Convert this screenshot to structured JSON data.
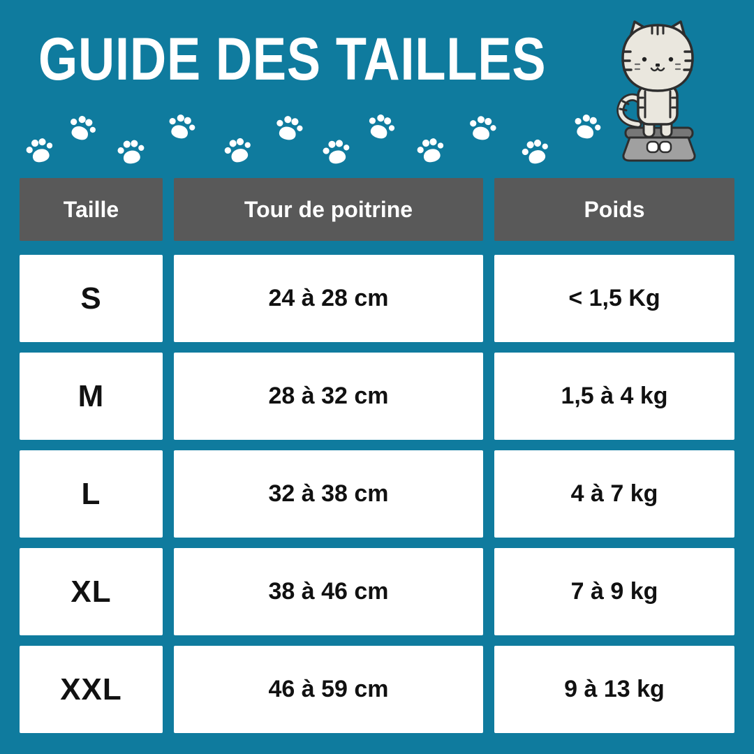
{
  "page": {
    "title": "GUIDE DES TAILLES"
  },
  "decor": {
    "paw_icon": "paw-print-icon",
    "paw_count": 12,
    "illustration": "cat-standing-on-scale"
  },
  "chart_data": {
    "type": "table",
    "title": "GUIDE DES TAILLES",
    "columns": [
      "Taille",
      "Tour de poitrine",
      "Poids"
    ],
    "rows": [
      [
        "S",
        "24 à 28 cm",
        "< 1,5 Kg"
      ],
      [
        "M",
        "28 à 32 cm",
        "1,5 à 4 kg"
      ],
      [
        "L",
        "32 à 38 cm",
        "4 à 7 kg"
      ],
      [
        "XL",
        "38 à 46 cm",
        "7 à 9 kg"
      ],
      [
        "XXL",
        "46 à 59 cm",
        "9 à 13 kg"
      ]
    ]
  },
  "colors": {
    "background": "#0f7b9e",
    "header_bg": "#595959",
    "header_text": "#ffffff",
    "cell_bg": "#ffffff",
    "cell_text": "#111111",
    "title_text": "#ffffff",
    "paw_print": "#ffffff"
  }
}
